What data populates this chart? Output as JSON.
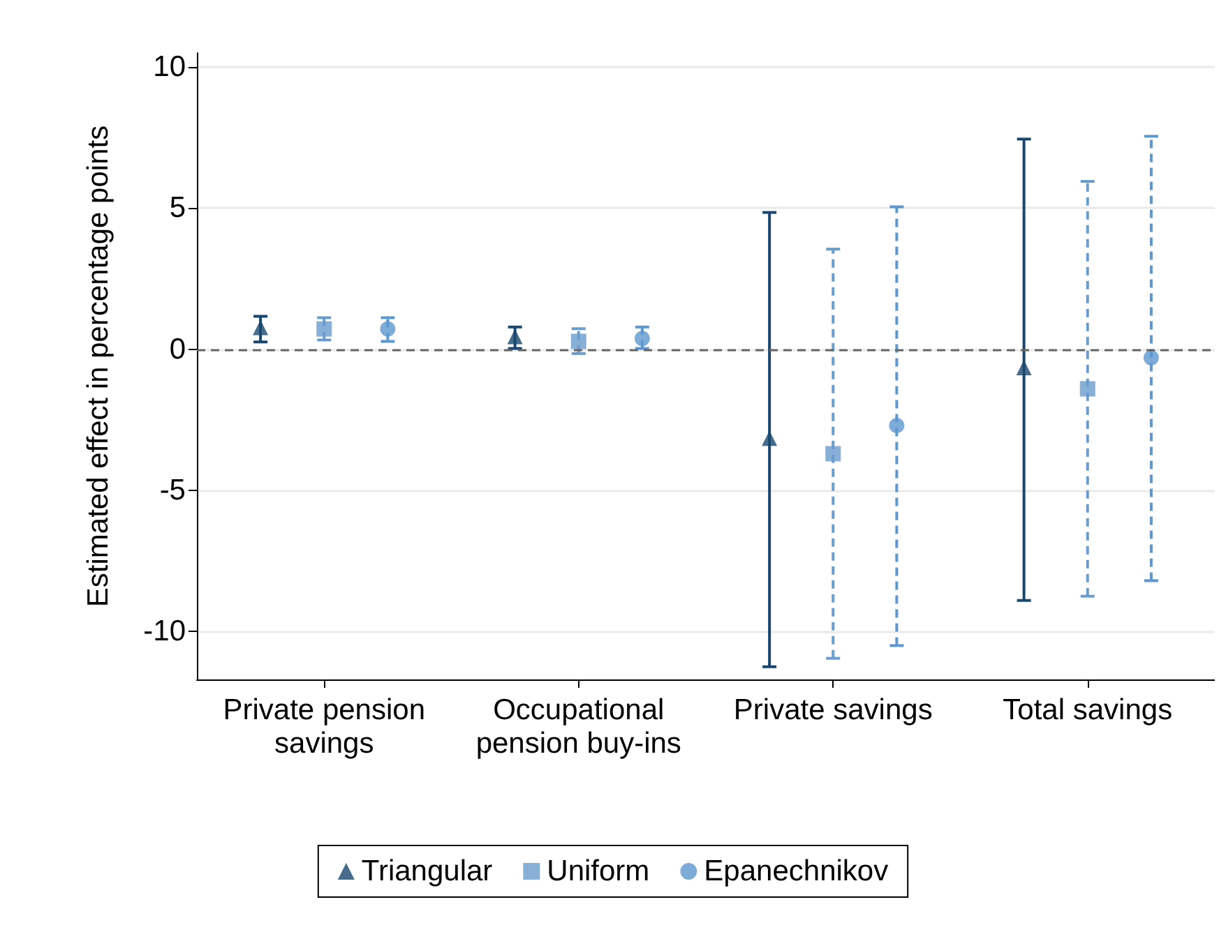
{
  "chart_data": {
    "type": "scatter",
    "ylabel": "Estimated effect in percentage points",
    "categories": [
      "Private pension\nsavings",
      "Occupational\npension buy-ins",
      "Private savings",
      "Total savings"
    ],
    "series": [
      {
        "name": "Triangular",
        "color": "#1a476f",
        "marker": "triangle",
        "line_style": "solid",
        "values": [
          0.77,
          0.45,
          -3.15,
          -0.65
        ],
        "errors": [
          [
            0.26,
            1.17
          ],
          [
            0.03,
            0.79
          ],
          [
            -11.25,
            4.85
          ],
          [
            -8.9,
            7.45
          ]
        ]
      },
      {
        "name": "Uniform",
        "color": "#6a9ccd",
        "marker": "square",
        "line_style": "dashed",
        "values": [
          0.72,
          0.28,
          -3.7,
          -1.4
        ],
        "errors": [
          [
            0.33,
            1.12
          ],
          [
            -0.15,
            0.73
          ],
          [
            -10.95,
            3.55
          ],
          [
            -8.75,
            5.95
          ]
        ]
      },
      {
        "name": "Epanechnikov",
        "color": "#5d97cf",
        "marker": "circle",
        "line_style": "dashed",
        "values": [
          0.72,
          0.38,
          -2.7,
          -0.3
        ],
        "errors": [
          [
            0.28,
            1.12
          ],
          [
            0.03,
            0.79
          ],
          [
            -10.5,
            5.05
          ],
          [
            -8.2,
            7.55
          ]
        ]
      }
    ],
    "ylim": [
      -11.7,
      10.5
    ],
    "yticks": [
      -10,
      -5,
      0,
      5,
      10
    ],
    "grid": "y",
    "legend": "bottom",
    "ref_lines": [
      {
        "axis": "y",
        "value": 0,
        "color": "#666666",
        "line_style": "dashed"
      }
    ]
  }
}
